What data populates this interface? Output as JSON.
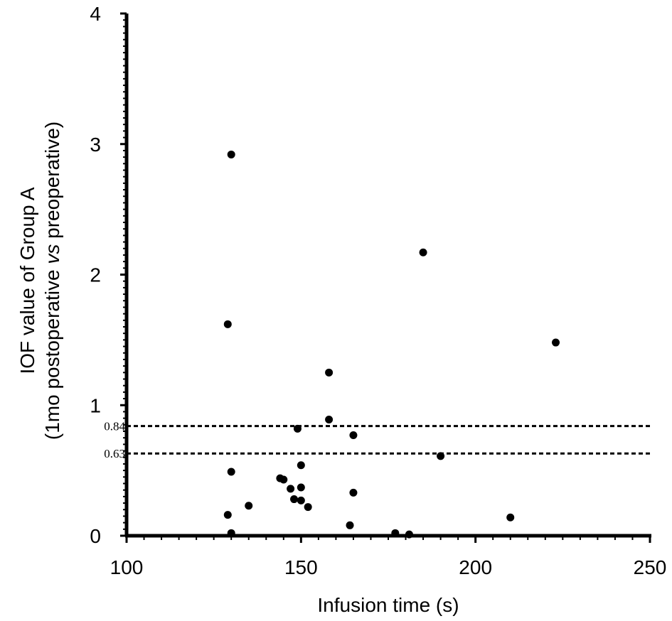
{
  "chart_data": {
    "type": "scatter",
    "title": "",
    "xlabel": "Infusion time (s)",
    "ylabel_line1": "IOF value of Group A",
    "ylabel_line2_prefix": "(1mo postoperative ",
    "ylabel_line2_italic": "vs",
    "ylabel_line2_suffix": " preoperative)",
    "xlim": [
      100,
      250
    ],
    "ylim": [
      0,
      4
    ],
    "x_ticks": [
      100,
      150,
      200,
      250
    ],
    "y_ticks": [
      0,
      1,
      2,
      3,
      4
    ],
    "x_tick_labels": [
      "100",
      "150",
      "200",
      "250"
    ],
    "y_tick_labels": [
      "0",
      "1",
      "2",
      "3",
      "4"
    ],
    "grid": false,
    "legend": "none",
    "marker_color": "#000000",
    "reference_lines": [
      {
        "y": 0.84,
        "label": "0.84",
        "style": "dashed"
      },
      {
        "y": 0.63,
        "label": "0.63",
        "style": "dashed"
      }
    ],
    "points": [
      {
        "x": 130,
        "y": 2.92
      },
      {
        "x": 185,
        "y": 2.17
      },
      {
        "x": 129,
        "y": 1.62
      },
      {
        "x": 223,
        "y": 1.48
      },
      {
        "x": 158,
        "y": 1.25
      },
      {
        "x": 158,
        "y": 0.89
      },
      {
        "x": 149,
        "y": 0.82
      },
      {
        "x": 165,
        "y": 0.77
      },
      {
        "x": 190,
        "y": 0.61
      },
      {
        "x": 150,
        "y": 0.54
      },
      {
        "x": 130,
        "y": 0.49
      },
      {
        "x": 144,
        "y": 0.44
      },
      {
        "x": 145,
        "y": 0.43
      },
      {
        "x": 147,
        "y": 0.36
      },
      {
        "x": 150,
        "y": 0.37
      },
      {
        "x": 165,
        "y": 0.33
      },
      {
        "x": 148,
        "y": 0.28
      },
      {
        "x": 150,
        "y": 0.27
      },
      {
        "x": 152,
        "y": 0.22
      },
      {
        "x": 135,
        "y": 0.23
      },
      {
        "x": 129,
        "y": 0.16
      },
      {
        "x": 210,
        "y": 0.14
      },
      {
        "x": 164,
        "y": 0.08
      },
      {
        "x": 130,
        "y": 0.02
      },
      {
        "x": 177,
        "y": 0.02
      },
      {
        "x": 181,
        "y": 0.01
      }
    ]
  }
}
